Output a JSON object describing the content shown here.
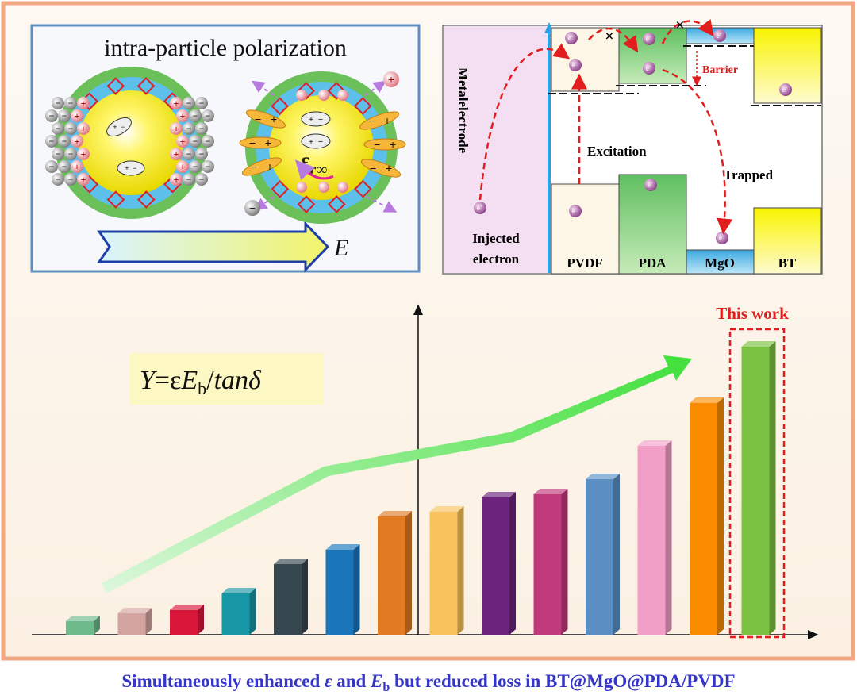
{
  "left_panel": {
    "title": "intra-particle polarization",
    "field_label": "E",
    "plus": "+",
    "minus": "−",
    "permittivity": {
      "symbol": "ε",
      "subscript": "r∞"
    }
  },
  "right_panel": {
    "electrode_label": "Metalelectrode",
    "injected_label": [
      "Injected",
      "electron"
    ],
    "electron": {
      "symbol": "e",
      "charge": "-"
    },
    "excitation_label": "Excitation",
    "trapped_label": "Trapped",
    "barrier_label": "Barrier",
    "blocked_mark": "×",
    "layers": [
      "PVDF",
      "PDA",
      "MgO",
      "BT"
    ]
  },
  "formula": [
    "Y",
    "=ε",
    "E",
    "b",
    "/",
    "tanδ"
  ],
  "highlight_label": "This work",
  "chart_data": {
    "type": "bar",
    "values": [
      17,
      27,
      31,
      52,
      89,
      107,
      149,
      155,
      173,
      177,
      196,
      238,
      292,
      363
    ],
    "colors": [
      "#6dbb8a",
      "#d4a5a0",
      "#d8173a",
      "#1797a6",
      "#37474f",
      "#1a75bb",
      "#e07b22",
      "#f9c25c",
      "#6b237e",
      "#c0397a",
      "#5b8fc3",
      "#f29fc8",
      "#fb8c00",
      "#7cc242"
    ],
    "ylim": [
      0,
      415
    ]
  },
  "caption": [
    "Simultaneously enhanced ",
    "ε",
    " and ",
    "E",
    "b",
    " but  reduced loss in BT@MgO@PDA/PVDF"
  ]
}
